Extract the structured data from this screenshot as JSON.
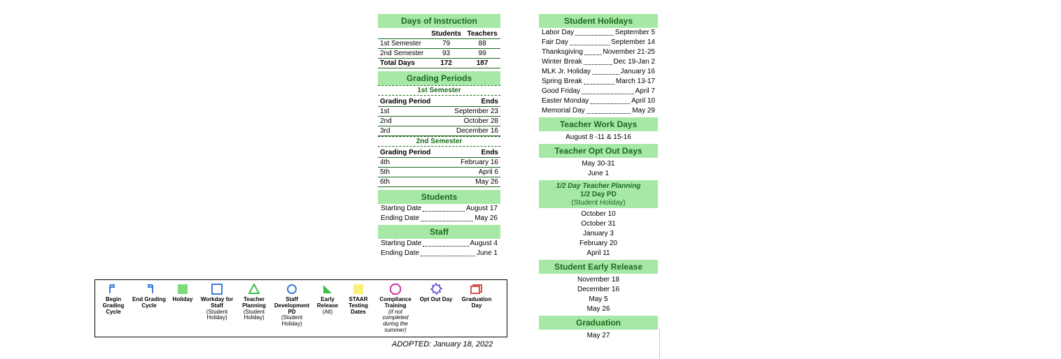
{
  "colors": {
    "header_bg": "#a7e8a7",
    "header_text": "#1a6b1a",
    "rule": "#1a6b1a"
  },
  "days_of_instruction": {
    "title": "Days of Instruction",
    "col_students": "Students",
    "col_teachers": "Teachers",
    "rows": [
      {
        "label": "1st Semester",
        "students": "79",
        "teachers": "88"
      },
      {
        "label": "2nd Semester",
        "students": "93",
        "teachers": "99"
      }
    ],
    "total": {
      "label": "Total Days",
      "students": "172",
      "teachers": "187"
    }
  },
  "grading_periods": {
    "title": "Grading Periods",
    "sem1_label": "1st Semester",
    "sem2_label": "2nd Semester",
    "col_period": "Grading Period",
    "col_ends": "Ends",
    "sem1": [
      {
        "p": "1st",
        "d": "September 23"
      },
      {
        "p": "2nd",
        "d": "October 28"
      },
      {
        "p": "3rd",
        "d": "December 16"
      }
    ],
    "sem2": [
      {
        "p": "4th",
        "d": "February 16"
      },
      {
        "p": "5th",
        "d": "April   6"
      },
      {
        "p": "6th",
        "d": "May 26"
      }
    ]
  },
  "students": {
    "title": "Students",
    "start_label": "Starting Date",
    "start_value": "August 17",
    "end_label": "Ending Date",
    "end_value": "May 26"
  },
  "staff": {
    "title": "Staff",
    "start_label": "Starting Date",
    "start_value": "August  4",
    "end_label": "Ending Date",
    "end_value": "June 1"
  },
  "student_holidays": {
    "title": "Student Holidays",
    "items": [
      {
        "l": "Labor Day",
        "r": "September 5"
      },
      {
        "l": "Fair Day",
        "r": "September 14"
      },
      {
        "l": "Thanksgiving",
        "r": "November 21-25"
      },
      {
        "l": "Winter Break",
        "r": "Dec 19-Jan 2"
      },
      {
        "l": "MLK Jr. Holiday",
        "r": "January 16"
      },
      {
        "l": "Spring Break",
        "r": "March 13-17"
      },
      {
        "l": "Good Friday",
        "r": "April 7"
      },
      {
        "l": "Easter Monday",
        "r": "April 10"
      },
      {
        "l": "Memorial Day",
        "r": "May 29"
      }
    ]
  },
  "teacher_work_days": {
    "title": "Teacher Work Days",
    "value": "August 8 -11 & 15-16"
  },
  "teacher_opt_out": {
    "title": "Teacher Opt Out Days",
    "items": [
      "May 30-31",
      "June 1"
    ]
  },
  "half_day": {
    "line1": "1/2 Day Teacher Planning",
    "line2": "1/2 Day PD",
    "line3": "(Student Holiday)",
    "items": [
      "October 10",
      "October 31",
      "January 3",
      "February 20",
      "April 11"
    ]
  },
  "early_release": {
    "title": "Student Early Release",
    "items": [
      "November 18",
      "December 16",
      "May 5",
      "May 26"
    ]
  },
  "graduation": {
    "title": "Graduation",
    "value": "May 27"
  },
  "adopted": "ADOPTED:  January 18, 2022",
  "legend": [
    {
      "name": "begin-grading-icon",
      "label": "Begin Grading Cycle",
      "sub": ""
    },
    {
      "name": "end-grading-icon",
      "label": "End Grading Cycle",
      "sub": ""
    },
    {
      "name": "holiday-icon",
      "label": "Holiday",
      "sub": ""
    },
    {
      "name": "workday-staff-icon",
      "label": "Workday for Staff",
      "sub": "(Student Holiday)"
    },
    {
      "name": "teacher-planning-icon",
      "label": "Teacher Planning",
      "sub": "(Student Holiday)"
    },
    {
      "name": "staff-dev-icon",
      "label": "Staff Development PD",
      "sub": "(Student Holiday)"
    },
    {
      "name": "early-release-icon",
      "label": "Early Release",
      "sub": "(All)"
    },
    {
      "name": "staar-icon",
      "label": "STAAR Testing Dates",
      "sub": ""
    },
    {
      "name": "compliance-icon",
      "label": "Compliance Training",
      "sub": "(if not completed during the summer)"
    },
    {
      "name": "opt-out-icon",
      "label": "Opt Out Day",
      "sub": ""
    },
    {
      "name": "graduation-icon",
      "label": "Graduation Day",
      "sub": ""
    }
  ]
}
